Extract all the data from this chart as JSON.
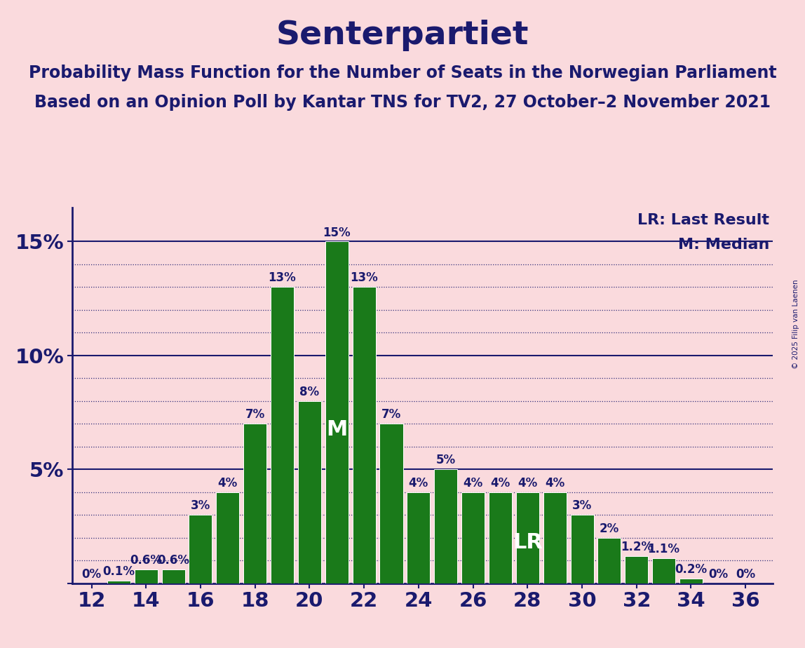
{
  "title": "Senterpartiet",
  "subtitle1": "Probability Mass Function for the Number of Seats in the Norwegian Parliament",
  "subtitle2": "Based on an Opinion Poll by Kantar TNS for TV2, 27 October–2 November 2021",
  "copyright": "© 2025 Filip van Laenen",
  "seats": [
    12,
    13,
    14,
    15,
    16,
    17,
    18,
    19,
    20,
    21,
    22,
    23,
    24,
    25,
    26,
    27,
    28,
    29,
    30,
    31,
    32,
    33,
    34,
    35,
    36
  ],
  "probabilities": [
    0.0,
    0.1,
    0.6,
    0.6,
    3.0,
    4.0,
    7.0,
    13.0,
    8.0,
    15.0,
    13.0,
    7.0,
    4.0,
    5.0,
    4.0,
    4.0,
    4.0,
    4.0,
    3.0,
    2.0,
    1.2,
    1.1,
    0.2,
    0.0,
    0.0
  ],
  "bar_color": "#1a7a1a",
  "background_color": "#fadadd",
  "title_color": "#1a1a6e",
  "axis_color": "#1a1a6e",
  "grid_color": "#1a1a6e",
  "label_color": "#1a1a6e",
  "median_seat": 21,
  "last_result_seat": 28,
  "lr_label": "LR: Last Result",
  "m_label": "M: Median",
  "median_label": "M",
  "lr_text": "LR",
  "ylim": [
    0,
    16.5
  ],
  "solid_yticks": [
    5,
    10,
    15
  ],
  "dotted_yticks": [
    1,
    2,
    3,
    4,
    6,
    7,
    8,
    9,
    11,
    12,
    13,
    14
  ],
  "xtick_positions": [
    12,
    14,
    16,
    18,
    20,
    22,
    24,
    26,
    28,
    30,
    32,
    34,
    36
  ],
  "bar_labels": [
    "0%",
    "0.1%",
    "0.6%",
    "0.6%",
    "3%",
    "4%",
    "7%",
    "13%",
    "8%",
    "15%",
    "13%",
    "7%",
    "4%",
    "5%",
    "4%",
    "4%",
    "4%",
    "4%",
    "3%",
    "2%",
    "1.2%",
    "1.1%",
    "0.2%",
    "0%",
    "0%"
  ],
  "title_fontsize": 34,
  "subtitle_fontsize": 17,
  "axis_label_fontsize": 21,
  "bar_label_fontsize": 12,
  "legend_fontsize": 16,
  "bar_label_inside_fontsize": 22,
  "bar_width": 0.85
}
